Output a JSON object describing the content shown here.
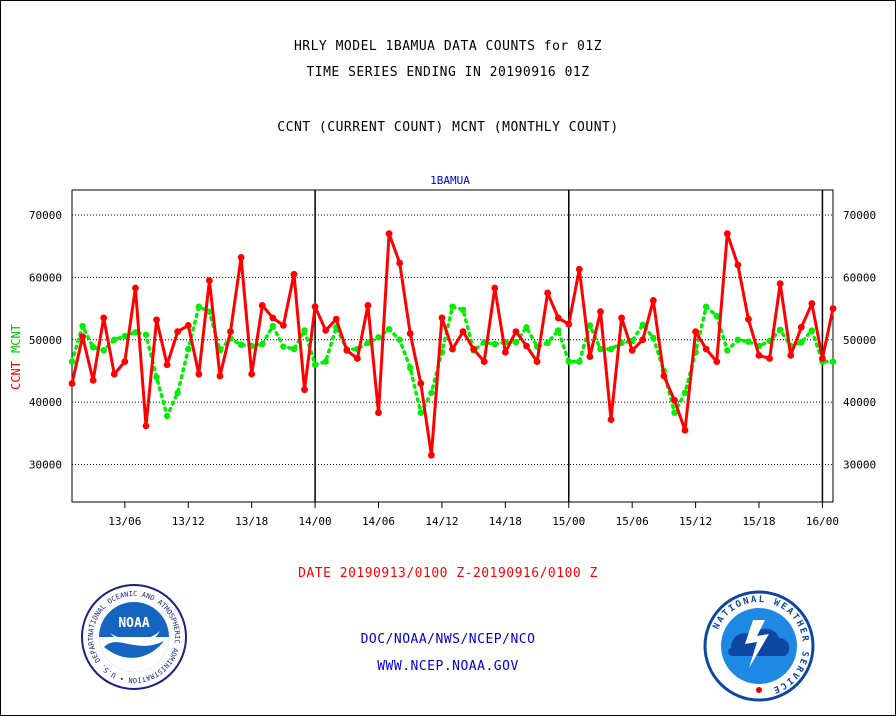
{
  "header": {
    "line1": "HRLY MODEL 1BAMUA DATA COUNTS for 01Z",
    "line2": "TIME SERIES ENDING IN 20190916 01Z",
    "line3": "CCNT (CURRENT COUNT) MCNT (MONTHLY COUNT)"
  },
  "footer": {
    "date_range": "DATE 20190913/0100 Z-20190916/0100 Z",
    "org": "DOC/NOAA/NWS/NCEP/NCO",
    "url": "WWW.NCEP.NOAA.GOV"
  },
  "logos": {
    "noaa_text": "NOAA",
    "noaa_ring": "NATIONAL OCEANIC AND ATMOSPHERIC ADMINISTRATION • U.S. DEPARTMENT OF COMMERCE •",
    "nws_ring": "NATIONAL WEATHER SERVICE"
  },
  "colors": {
    "ccnt": "#ff0000",
    "mcnt": "#00ee00",
    "title_blue": "#0000cc",
    "date_red": "#ff0000"
  },
  "chart_data": {
    "type": "line",
    "title": "1BAMUA",
    "ylabel_parts": [
      "CCNT",
      "MCNT"
    ],
    "ylim": [
      24000,
      74000
    ],
    "yticks": [
      30000,
      40000,
      50000,
      60000,
      70000
    ],
    "grid": true,
    "x_start": "2019-09-13 01Z",
    "x_step_hours": 1,
    "xticks": [
      {
        "label": "13/06",
        "index": 5
      },
      {
        "label": "13/12",
        "index": 11
      },
      {
        "label": "13/18",
        "index": 17
      },
      {
        "label": "14/00",
        "index": 23
      },
      {
        "label": "14/06",
        "index": 29
      },
      {
        "label": "14/12",
        "index": 35
      },
      {
        "label": "14/18",
        "index": 41
      },
      {
        "label": "15/00",
        "index": 47
      },
      {
        "label": "15/06",
        "index": 53
      },
      {
        "label": "15/12",
        "index": 59
      },
      {
        "label": "15/18",
        "index": 65
      },
      {
        "label": "16/00",
        "index": 71
      }
    ],
    "day_boundaries": [
      23,
      47,
      71
    ],
    "series": [
      {
        "name": "CCNT",
        "values": [
          43000,
          50500,
          43500,
          53500,
          44500,
          46500,
          58300,
          36200,
          53200,
          46000,
          51300,
          52300,
          44500,
          59500,
          44200,
          51300,
          63200,
          44500,
          55500,
          53500,
          52300,
          60500,
          42000,
          55300,
          51500,
          53300,
          48300,
          47000,
          55500,
          38300,
          67000,
          62300,
          51000,
          43000,
          31500,
          53500,
          48500,
          51300,
          48500,
          46500,
          58300,
          48000,
          51300,
          49000,
          46500,
          57500,
          53500,
          52500,
          61300,
          47300,
          54500,
          37200,
          53500,
          48300,
          50000,
          56300,
          44200,
          40300,
          35500,
          51300,
          48500,
          46500,
          67000,
          62000,
          53300,
          47500,
          47000,
          59000,
          47500,
          52000,
          55800,
          47000,
          55000
        ]
      },
      {
        "name": "MCNT",
        "values": [
          46500,
          52200,
          48800,
          48300,
          50000,
          50600,
          51200,
          50800,
          44000,
          37800,
          41500,
          48500,
          55300,
          54500,
          48300,
          50200,
          49200,
          49000,
          49300,
          52200,
          48900,
          48500,
          51500,
          46000,
          46500,
          52000,
          48500,
          48500,
          49500,
          50400,
          51700,
          50000,
          45500,
          38300,
          41500,
          48000,
          55300,
          54800,
          48300,
          49600,
          49300,
          49600,
          49600,
          52000,
          48900,
          49500,
          51500,
          46500,
          46500,
          52300,
          48500,
          48500,
          49500,
          49800,
          52400,
          50300,
          45000,
          38300,
          41500,
          48000,
          55300,
          53800,
          48300,
          50000,
          49700,
          49000,
          49800,
          51600,
          49000,
          49600,
          51500,
          46500,
          46500
        ]
      }
    ]
  }
}
